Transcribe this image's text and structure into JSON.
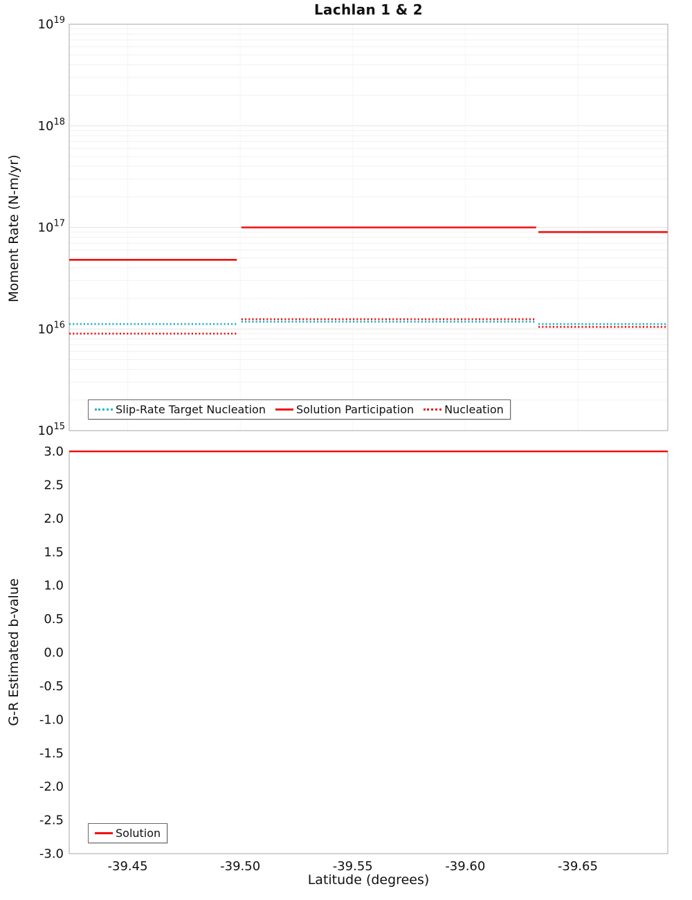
{
  "chart_data": [
    {
      "type": "line",
      "title": "Lachlan 1 & 2",
      "ylabel": "Moment Rate (N-m/yr)",
      "yscale": "log",
      "ylim_exp": [
        15,
        19
      ],
      "ylim": [
        1000000000000000.0,
        1e+19
      ],
      "xlim": [
        -39.424,
        -39.69
      ],
      "x_axis_reversed": true,
      "xticks": [
        -39.45,
        -39.5,
        -39.55,
        -39.6,
        -39.65
      ],
      "show_xticks": false,
      "grid": "horizontal-log-minor",
      "legend_position": "bottom-left",
      "series": [
        {
          "name": "Slip-Rate Target Nucleation",
          "color": "#1ab3c4",
          "dash": "dotted",
          "segments": [
            {
              "x1": -39.424,
              "x2": -39.4985,
              "y": 1.12e+16
            },
            {
              "x1": -39.5005,
              "x2": -39.6315,
              "y": 1.18e+16
            },
            {
              "x1": -39.6325,
              "x2": -39.69,
              "y": 1.12e+16
            }
          ]
        },
        {
          "name": "Solution Participation",
          "color": "#f20d0d",
          "dash": "solid",
          "segments": [
            {
              "x1": -39.424,
              "x2": -39.4985,
              "y": 4.8e+16
            },
            {
              "x1": -39.5005,
              "x2": -39.6315,
              "y": 1e+17
            },
            {
              "x1": -39.6325,
              "x2": -39.69,
              "y": 9e+16
            }
          ]
        },
        {
          "name": "Nucleation",
          "color": "#f20d0d",
          "dash": "dotted",
          "segments": [
            {
              "x1": -39.424,
              "x2": -39.4985,
              "y": 9000000000000000.0
            },
            {
              "x1": -39.5005,
              "x2": -39.6315,
              "y": 1.25e+16
            },
            {
              "x1": -39.6325,
              "x2": -39.69,
              "y": 1.05e+16
            }
          ]
        }
      ]
    },
    {
      "type": "line",
      "title": "",
      "ylabel": "G-R Estimated b-value",
      "xlabel": "Latitude (degrees)",
      "yscale": "linear",
      "ylim": [
        -3.0,
        3.0
      ],
      "yticks": [
        3.0,
        2.5,
        2.0,
        1.5,
        1.0,
        0.5,
        0.0,
        -0.5,
        -1.0,
        -1.5,
        -2.0,
        -2.5,
        -3.0
      ],
      "xlim": [
        -39.424,
        -39.69
      ],
      "x_axis_reversed": true,
      "xticks": [
        -39.45,
        -39.5,
        -39.55,
        -39.6,
        -39.65
      ],
      "show_xticks": true,
      "grid": "none",
      "legend_position": "bottom-left",
      "series": [
        {
          "name": "Solution",
          "color": "#f20d0d",
          "dash": "solid",
          "segments": [
            {
              "x1": -39.424,
              "x2": -39.69,
              "y": 3.0
            }
          ]
        }
      ]
    }
  ]
}
